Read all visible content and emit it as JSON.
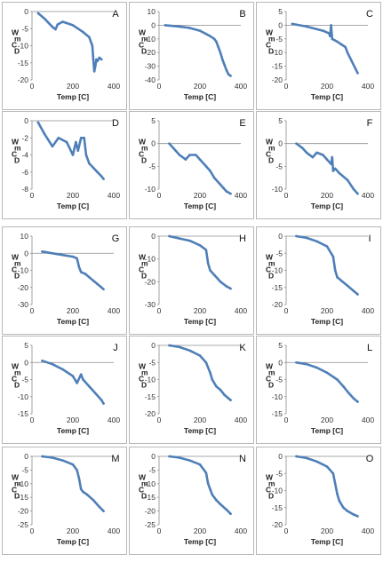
{
  "figure": {
    "x_axis_label": "Temp [C]",
    "y_axis_label_lines": [
      "W",
      "m",
      "C",
      "D"
    ],
    "series_color": "#4f7fb8"
  },
  "chart_data": [
    {
      "panel": "A",
      "type": "line",
      "xlabel": "Temp [C]",
      "ylabel": "WmCD",
      "xlim": [
        0,
        400
      ],
      "ylim": [
        -20,
        0
      ],
      "xticks": [
        "0",
        "200",
        "400"
      ],
      "yticks": [
        "0",
        "-5",
        "-10",
        "-15",
        "-20"
      ],
      "x": [
        30,
        60,
        100,
        115,
        125,
        150,
        200,
        250,
        280,
        295,
        300,
        305,
        310,
        315,
        320,
        330,
        340
      ],
      "y": [
        -0.5,
        -2,
        -4.5,
        -5.2,
        -3.8,
        -3,
        -4,
        -6,
        -7.5,
        -10,
        -14,
        -17.5,
        -16,
        -14,
        -14.5,
        -13.5,
        -14
      ]
    },
    {
      "panel": "B",
      "type": "line",
      "xlabel": "Temp [C]",
      "ylabel": "WmCD",
      "xlim": [
        0,
        400
      ],
      "ylim": [
        -40,
        10
      ],
      "xticks": [
        "0",
        "200",
        "400"
      ],
      "yticks": [
        "10",
        "0",
        "-10",
        "-20",
        "-30",
        "-40"
      ],
      "x": [
        30,
        100,
        150,
        200,
        250,
        270,
        280,
        290,
        300,
        310,
        320,
        330,
        340,
        350
      ],
      "y": [
        0,
        -1,
        -2,
        -4,
        -8,
        -10,
        -12,
        -16,
        -20,
        -25,
        -29,
        -33,
        -36,
        -37
      ]
    },
    {
      "panel": "C",
      "type": "line",
      "xlabel": "Temp [C]",
      "ylabel": "WmCD",
      "xlim": [
        0,
        400
      ],
      "ylim": [
        -20,
        5
      ],
      "xticks": [
        "0",
        "200",
        "400"
      ],
      "yticks": [
        "5",
        "0",
        "-5",
        "-10",
        "-15",
        "-20"
      ],
      "x": [
        30,
        100,
        180,
        210,
        215,
        220,
        225,
        250,
        270,
        290,
        300,
        320,
        340,
        350
      ],
      "y": [
        0.5,
        -0.5,
        -2,
        -3,
        -4,
        0,
        -5,
        -6,
        -7,
        -8,
        -10,
        -13,
        -16,
        -17.5
      ]
    },
    {
      "panel": "D",
      "type": "line",
      "xlabel": "Temp [C]",
      "ylabel": "WmCD",
      "xlim": [
        0,
        400
      ],
      "ylim": [
        -8,
        0
      ],
      "xticks": [
        "0",
        "200",
        "400"
      ],
      "yticks": [
        "0",
        "-2",
        "-4",
        "-6",
        "-8"
      ],
      "x": [
        30,
        60,
        100,
        130,
        170,
        200,
        215,
        225,
        240,
        255,
        265,
        280,
        300,
        320,
        340,
        350
      ],
      "y": [
        -0.2,
        -1.5,
        -3,
        -2,
        -2.5,
        -4,
        -2.5,
        -3.5,
        -2,
        -2,
        -4,
        -5,
        -5.5,
        -6,
        -6.5,
        -6.8
      ]
    },
    {
      "panel": "E",
      "type": "line",
      "xlabel": "Temp [C]",
      "ylabel": "WmCD",
      "xlim": [
        0,
        400
      ],
      "ylim": [
        -10,
        5
      ],
      "xticks": [
        "0",
        "200",
        "400"
      ],
      "yticks": [
        "5",
        "0",
        "-5",
        "-10"
      ],
      "x": [
        50,
        80,
        100,
        130,
        150,
        180,
        200,
        230,
        250,
        270,
        300,
        330,
        350
      ],
      "y": [
        0,
        -1.5,
        -2.5,
        -3.5,
        -2.5,
        -2.5,
        -3.5,
        -5,
        -6,
        -7.5,
        -9,
        -10.5,
        -11
      ]
    },
    {
      "panel": "F",
      "type": "line",
      "xlabel": "Temp [C]",
      "ylabel": "WmCD",
      "xlim": [
        0,
        400
      ],
      "ylim": [
        -10,
        5
      ],
      "xticks": [
        "0",
        "200",
        "400"
      ],
      "yticks": [
        "5",
        "0",
        "-5",
        "-10"
      ],
      "x": [
        50,
        80,
        100,
        130,
        150,
        180,
        200,
        220,
        225,
        230,
        240,
        260,
        300,
        330,
        350
      ],
      "y": [
        0,
        -1,
        -2,
        -3,
        -2,
        -2.5,
        -3.5,
        -4.5,
        -3,
        -6,
        -5.5,
        -6.5,
        -8,
        -10,
        -11
      ]
    },
    {
      "panel": "G",
      "type": "line",
      "xlabel": "Temp [C]",
      "ylabel": "WmCD",
      "xlim": [
        0,
        400
      ],
      "ylim": [
        -30,
        10
      ],
      "xticks": [
        "0",
        "200",
        "400"
      ],
      "yticks": [
        "10",
        "0",
        "-10",
        "-20",
        "-30"
      ],
      "x": [
        50,
        100,
        150,
        200,
        220,
        230,
        240,
        260,
        280,
        300,
        320,
        340,
        350
      ],
      "y": [
        1,
        0,
        -1,
        -2,
        -3,
        -8,
        -11,
        -12,
        -14,
        -16,
        -18,
        -20,
        -21
      ]
    },
    {
      "panel": "H",
      "type": "line",
      "xlabel": "Temp [C]",
      "ylabel": "WmCD",
      "xlim": [
        0,
        400
      ],
      "ylim": [
        -30,
        0
      ],
      "xticks": [
        "0",
        "200",
        "400"
      ],
      "yticks": [
        "0",
        "-10",
        "-20",
        "-30"
      ],
      "x": [
        50,
        100,
        150,
        200,
        230,
        240,
        250,
        270,
        300,
        330,
        350
      ],
      "y": [
        0,
        -1,
        -2,
        -4,
        -6,
        -12,
        -15,
        -17,
        -20,
        -22,
        -23
      ]
    },
    {
      "panel": "I",
      "type": "line",
      "xlabel": "Temp [C]",
      "ylabel": "WmCD",
      "xlim": [
        0,
        400
      ],
      "ylim": [
        -20,
        0
      ],
      "xticks": [
        "0",
        "200",
        "400"
      ],
      "yticks": [
        "0",
        "-5",
        "-10",
        "-15",
        "-20"
      ],
      "x": [
        50,
        100,
        150,
        200,
        230,
        240,
        250,
        270,
        300,
        330,
        350
      ],
      "y": [
        0,
        -0.5,
        -1.5,
        -3,
        -6,
        -10,
        -12,
        -13,
        -14.5,
        -16,
        -17
      ]
    },
    {
      "panel": "J",
      "type": "line",
      "xlabel": "Temp [C]",
      "ylabel": "WmCD",
      "xlim": [
        0,
        400
      ],
      "ylim": [
        -15,
        5
      ],
      "xticks": [
        "0",
        "200",
        "400"
      ],
      "yticks": [
        "5",
        "0",
        "-5",
        "-10",
        "-15"
      ],
      "x": [
        50,
        100,
        150,
        200,
        220,
        240,
        250,
        280,
        310,
        340,
        350
      ],
      "y": [
        0.5,
        -0.5,
        -2,
        -4,
        -6,
        -3.5,
        -5,
        -7,
        -9,
        -11,
        -12
      ]
    },
    {
      "panel": "K",
      "type": "line",
      "xlabel": "Temp [C]",
      "ylabel": "WmCD",
      "xlim": [
        0,
        400
      ],
      "ylim": [
        -20,
        0
      ],
      "xticks": [
        "0",
        "200",
        "400"
      ],
      "yticks": [
        "0",
        "-5",
        "-10",
        "-15",
        "-20"
      ],
      "x": [
        50,
        100,
        150,
        200,
        230,
        250,
        260,
        280,
        300,
        320,
        340,
        350
      ],
      "y": [
        0,
        -0.5,
        -1.5,
        -3,
        -5,
        -8,
        -10,
        -12,
        -13,
        -14.5,
        -15.5,
        -16
      ]
    },
    {
      "panel": "L",
      "type": "line",
      "xlabel": "Temp [C]",
      "ylabel": "WmCD",
      "xlim": [
        0,
        400
      ],
      "ylim": [
        -15,
        5
      ],
      "xticks": [
        "0",
        "200",
        "400"
      ],
      "yticks": [
        "5",
        "0",
        "-5",
        "-10",
        "-15"
      ],
      "x": [
        50,
        100,
        150,
        200,
        250,
        280,
        300,
        330,
        350
      ],
      "y": [
        0,
        -0.5,
        -1.5,
        -3,
        -5,
        -7,
        -8.5,
        -10.5,
        -11.5
      ]
    },
    {
      "panel": "M",
      "type": "line",
      "xlabel": "Temp [C]",
      "ylabel": "WmCD",
      "xlim": [
        0,
        400
      ],
      "ylim": [
        -25,
        0
      ],
      "xticks": [
        "0",
        "200",
        "400"
      ],
      "yticks": [
        "0",
        "-5",
        "-10",
        "-15",
        "-20",
        "-25"
      ],
      "x": [
        50,
        100,
        150,
        200,
        220,
        230,
        240,
        250,
        270,
        300,
        330,
        350
      ],
      "y": [
        0,
        -0.5,
        -1.5,
        -3,
        -5,
        -8,
        -12,
        -13,
        -14,
        -16,
        -18.5,
        -20
      ]
    },
    {
      "panel": "N",
      "type": "line",
      "xlabel": "Temp [C]",
      "ylabel": "WmCD",
      "xlim": [
        0,
        400
      ],
      "ylim": [
        -25,
        0
      ],
      "xticks": [
        "0",
        "200",
        "400"
      ],
      "yticks": [
        "0",
        "-5",
        "-10",
        "-15",
        "-20",
        "-25"
      ],
      "x": [
        50,
        100,
        150,
        200,
        230,
        240,
        250,
        260,
        280,
        300,
        330,
        350
      ],
      "y": [
        0,
        -0.5,
        -1.5,
        -3,
        -6,
        -10,
        -12,
        -14,
        -16,
        -17.5,
        -19.5,
        -21
      ]
    },
    {
      "panel": "O",
      "type": "line",
      "xlabel": "Temp [C]",
      "ylabel": "WmCD",
      "xlim": [
        0,
        400
      ],
      "ylim": [
        -20,
        0
      ],
      "xticks": [
        "0",
        "200",
        "400"
      ],
      "yticks": [
        "0",
        "-5",
        "-10",
        "-15",
        "-20"
      ],
      "x": [
        50,
        100,
        150,
        200,
        230,
        240,
        250,
        260,
        280,
        300,
        330,
        350
      ],
      "y": [
        0,
        -0.5,
        -1.5,
        -3,
        -5,
        -8,
        -11,
        -13,
        -15,
        -16,
        -17,
        -17.5
      ]
    }
  ]
}
